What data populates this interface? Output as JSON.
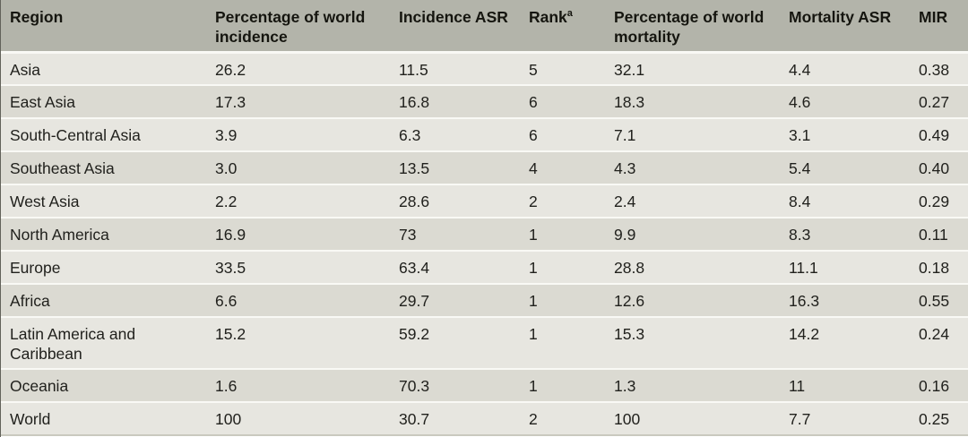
{
  "table": {
    "name": "Regional incidence and mortality table",
    "columns": [
      {
        "id": "region",
        "label": "Region"
      },
      {
        "id": "pct_world_incidence",
        "label": "Percentage of world incidence"
      },
      {
        "id": "incidence_asr",
        "label": "Incidence ASR"
      },
      {
        "id": "rank",
        "label": "Rank",
        "sup": "a"
      },
      {
        "id": "pct_world_mortality",
        "label": "Percentage of world mortality"
      },
      {
        "id": "mortality_asr",
        "label": "Mortality ASR"
      },
      {
        "id": "mir",
        "label": "MIR"
      }
    ],
    "rows": [
      [
        "Asia",
        "26.2",
        "11.5",
        "5",
        "32.1",
        "4.4",
        "0.38"
      ],
      [
        "East Asia",
        "17.3",
        "16.8",
        "6",
        "18.3",
        "4.6",
        "0.27"
      ],
      [
        "South-Central Asia",
        "3.9",
        "6.3",
        "6",
        "7.1",
        "3.1",
        "0.49"
      ],
      [
        "Southeast Asia",
        "3.0",
        "13.5",
        "4",
        "4.3",
        "5.4",
        "0.40"
      ],
      [
        "West Asia",
        "2.2",
        "28.6",
        "2",
        "2.4",
        "8.4",
        "0.29"
      ],
      [
        "North America",
        "16.9",
        "73",
        "1",
        "9.9",
        "8.3",
        "0.11"
      ],
      [
        "Europe",
        "33.5",
        "63.4",
        "1",
        "28.8",
        "11.1",
        "0.18"
      ],
      [
        "Africa",
        "6.6",
        "29.7",
        "1",
        "12.6",
        "16.3",
        "0.55"
      ],
      [
        "Latin America and Caribbean",
        "15.2",
        "59.2",
        "1",
        "15.3",
        "14.2",
        "0.24"
      ],
      [
        "Oceania",
        "1.6",
        "70.3",
        "1",
        "1.3",
        "11",
        "0.16"
      ],
      [
        "World",
        "100",
        "30.7",
        "2",
        "100",
        "7.7",
        "0.25"
      ]
    ],
    "colors": {
      "header_bg": "#b3b4aa",
      "row_light": "#e7e6e0",
      "row_dark": "#dbdad2",
      "separator": "#f9f9f5",
      "text": "#21211d"
    }
  }
}
